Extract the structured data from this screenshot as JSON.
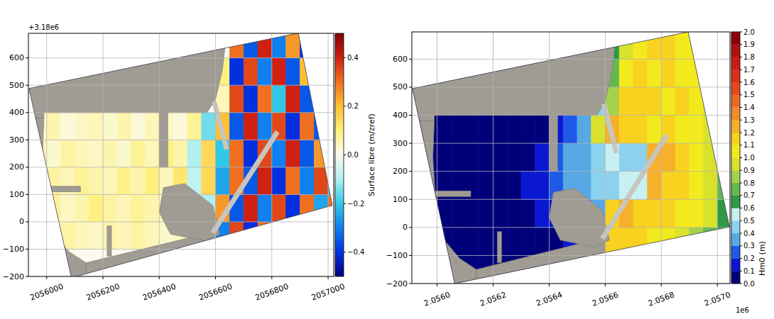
{
  "chart_data": [
    {
      "type": "heatmap",
      "xlim": [
        2055935,
        2057020
      ],
      "ylim": [
        -200,
        690
      ],
      "xticks": [
        2056000,
        2056200,
        2056400,
        2056600,
        2056800,
        2057000
      ],
      "yticks": [
        {
          "value": -200,
          "label": "−200"
        },
        {
          "value": -100,
          "label": "−100"
        },
        0,
        100,
        200,
        300,
        400,
        500,
        600
      ],
      "y_offset_text": "+3.18e6",
      "grid": true,
      "domain": {
        "x": [
          2055937,
          2056894,
          2057015,
          2056088
        ],
        "y": [
          488,
          691,
          60,
          -205
        ]
      },
      "cells": {
        "x_edges": [
          2055900,
          2055950,
          2056000,
          2056050,
          2056100,
          2056150,
          2056200,
          2056250,
          2056300,
          2056350,
          2056400,
          2056450,
          2056500,
          2056550,
          2056600,
          2056650,
          2056700,
          2056750,
          2056800,
          2056850,
          2056900,
          2056950,
          2057000,
          2057050
        ],
        "y_edges": [
          -200,
          -100,
          0,
          100,
          200,
          300,
          400,
          500,
          600,
          700
        ],
        "values": [
          [
            0,
            0,
            0,
            0,
            0,
            0,
            0,
            0,
            0,
            0,
            0,
            0,
            0,
            0,
            0.3,
            -0.35,
            0.35,
            -0.4,
            0.3,
            -0.3,
            0.4,
            -0.35,
            0.2
          ],
          [
            0.04,
            0.06,
            0.05,
            0.07,
            0.05,
            0.04,
            0.06,
            0.05,
            0.07,
            0.05,
            0.03,
            0.04,
            0.02,
            0,
            -0.3,
            0.35,
            -0.4,
            0.3,
            -0.35,
            0.4,
            -0.2,
            0.3,
            -0.3
          ],
          [
            0.06,
            0.05,
            0.08,
            0.04,
            0.06,
            0.1,
            0.07,
            0.05,
            0.08,
            0.06,
            0.04,
            0.05,
            0.03,
            -0.1,
            0.25,
            -0.35,
            0.4,
            -0.3,
            0.35,
            -0.4,
            0.3,
            -0.25,
            0.3
          ],
          [
            0.05,
            0.04,
            0.07,
            0.05,
            0.08,
            0.06,
            0.05,
            0.09,
            0.06,
            0.1,
            0.05,
            0.12,
            -0.08,
            0.15,
            -0.25,
            0.3,
            -0.35,
            0.4,
            -0.4,
            0.3,
            -0.3,
            0.35,
            -0.2
          ],
          [
            0.04,
            0.06,
            0.03,
            0.07,
            0.05,
            0.04,
            0.06,
            0.03,
            0.08,
            0.05,
            0.1,
            0.06,
            -0.1,
            0.15,
            -0.2,
            0.3,
            -0.4,
            0.35,
            -0.3,
            0.4,
            -0.35,
            0.25,
            -0.3
          ],
          [
            0.05,
            0.03,
            0.06,
            0.02,
            0.04,
            0.05,
            0.03,
            0.06,
            0.02,
            0.05,
            0.04,
            0.02,
            0.08,
            -0.15,
            0.2,
            -0.35,
            0.4,
            -0.3,
            0.35,
            -0.4,
            0.3,
            -0.35,
            0.2
          ],
          [
            0,
            0,
            0,
            0,
            0,
            0,
            0,
            0,
            0,
            0,
            0,
            0,
            0,
            0,
            0.05,
            0.35,
            -0.4,
            0.3,
            -0.2,
            0.4,
            -0.35,
            0.3,
            -0.25
          ],
          [
            0,
            0,
            0,
            0,
            0,
            0,
            0,
            0,
            0,
            0,
            0,
            0,
            0,
            0,
            0.1,
            -0.4,
            0.35,
            -0.3,
            0.4,
            -0.35,
            0.2,
            -0.3,
            0.4
          ],
          [
            0,
            0,
            0,
            0,
            0,
            0,
            0,
            0,
            0,
            0,
            0,
            0,
            0,
            0,
            0,
            0.3,
            -0.35,
            0.4,
            -0.3,
            0.25,
            -0.4,
            0.35,
            -0.2
          ]
        ]
      },
      "colorbar": {
        "label": "Surface libre (m/zref)",
        "lim": [
          -0.5,
          0.5
        ],
        "ticks": [
          {
            "value": -0.4,
            "label": "−0.4"
          },
          {
            "value": -0.2,
            "label": "−0.2"
          },
          {
            "value": 0,
            "label": "0.0"
          },
          0.2,
          0.4
        ]
      },
      "land": [
        {
          "x": [
            2055850,
            2056650,
            2056625,
            2056600,
            2056570,
            2055990,
            2055990,
            2055850
          ],
          "y": [
            800,
            800,
            560,
            450,
            400,
            400,
            380,
            380
          ]
        },
        {
          "x": [
            2055850,
            2055990,
            2055985,
            2055995,
            2056030,
            2056080,
            2056140,
            2056140,
            2055850
          ],
          "y": [
            380,
            380,
            250,
            90,
            -50,
            -110,
            -150,
            -260,
            -260
          ]
        },
        {
          "x": [
            2056140,
            2056560,
            2056600,
            2056600,
            2056140
          ],
          "y": [
            -150,
            -45,
            -60,
            -260,
            -260
          ]
        },
        {
          "x": [
            2056400,
            2056415,
            2056490,
            2056590,
            2056615,
            2056565,
            2056440
          ],
          "y": [
            35,
            125,
            140,
            60,
            -45,
            -70,
            -45
          ]
        },
        {
          "x": [
            2056400,
            2056430,
            2056430,
            2056400
          ],
          "y": [
            400,
            400,
            200,
            200
          ]
        },
        {
          "x": [
            2055990,
            2056120,
            2056120,
            2055990
          ],
          "y": [
            130,
            130,
            110,
            110
          ]
        },
        {
          "x": [
            2056215,
            2056230,
            2056230,
            2056215
          ],
          "y": [
            -15,
            -15,
            -125,
            -125
          ]
        }
      ],
      "breakwaters": [
        {
          "x": [
            2056590,
            2056820
          ],
          "y": [
            -40,
            330
          ]
        },
        {
          "x": [
            2056595,
            2056640
          ],
          "y": [
            440,
            265
          ]
        }
      ]
    },
    {
      "type": "contourf",
      "xlim": [
        2055910,
        2057045
      ],
      "ylim": [
        -200,
        697
      ],
      "xticks": [
        {
          "value": 2056000,
          "label": "2.0560"
        },
        {
          "value": 2056200,
          "label": "2.0562"
        },
        {
          "value": 2056400,
          "label": "2.0564"
        },
        {
          "value": 2056600,
          "label": "2.0566"
        },
        {
          "value": 2056800,
          "label": "2.0568"
        },
        {
          "value": 2057000,
          "label": "2.0570"
        }
      ],
      "yticks": [
        {
          "value": -200,
          "label": "−200"
        },
        {
          "value": -100,
          "label": "−100"
        },
        0,
        100,
        200,
        300,
        400,
        500,
        600
      ],
      "x_offset_text": "1e6",
      "grid": true,
      "domain": {
        "x": [
          2055912,
          2056896,
          2057043,
          2056063
        ],
        "y": [
          495,
          697,
          2,
          -200
        ]
      },
      "cells": {
        "x_edges": [
          2055900,
          2055950,
          2056000,
          2056050,
          2056100,
          2056150,
          2056200,
          2056250,
          2056300,
          2056350,
          2056400,
          2056450,
          2056500,
          2056550,
          2056600,
          2056650,
          2056700,
          2056750,
          2056800,
          2056850,
          2056900,
          2056950,
          2057000,
          2057050
        ],
        "y_edges": [
          -200,
          -100,
          0,
          100,
          200,
          300,
          400,
          500,
          600,
          700
        ],
        "values": [
          [
            0.05,
            0.05,
            0.05,
            0.05,
            0.05,
            0.05,
            0.05,
            0.05,
            0.05,
            0.05,
            0.05,
            0.05,
            0.05,
            0.7,
            0.9,
            1.0,
            1.0,
            0.95,
            0.9,
            0.85,
            0.8,
            0.7,
            0.6
          ],
          [
            0.05,
            0.05,
            0.05,
            0.05,
            0.05,
            0.05,
            0.05,
            0.05,
            0.05,
            0.05,
            0.08,
            0.1,
            0.15,
            0.9,
            1.1,
            1.15,
            1.1,
            1.05,
            1.0,
            0.95,
            0.85,
            0.7,
            0.6
          ],
          [
            0.05,
            0.05,
            0.05,
            0.05,
            0.05,
            0.05,
            0.05,
            0.05,
            0.08,
            0.1,
            0.12,
            0.15,
            0.2,
            0.3,
            1.15,
            1.2,
            1.15,
            1.1,
            1.1,
            1.05,
            1.0,
            0.9,
            0.65
          ],
          [
            0.05,
            0.05,
            0.05,
            0.05,
            0.05,
            0.05,
            0.05,
            0.08,
            0.1,
            0.15,
            0.2,
            0.3,
            0.35,
            0.4,
            0.45,
            0.5,
            0.55,
            1.2,
            1.15,
            1.1,
            1.05,
            0.95,
            0.7
          ],
          [
            0.05,
            0.05,
            0.05,
            0.05,
            0.05,
            0.05,
            0.05,
            0.05,
            0.08,
            0.15,
            0.25,
            0.3,
            0.35,
            0.45,
            0.5,
            0.45,
            0.4,
            1.25,
            1.2,
            1.1,
            1.05,
            0.95,
            0.75
          ],
          [
            0.05,
            0.05,
            0.05,
            0.05,
            0.05,
            0.05,
            0.05,
            0.05,
            0.05,
            0.08,
            0.15,
            0.2,
            0.3,
            0.9,
            1.2,
            1.15,
            1.1,
            1.05,
            1.1,
            1.05,
            1.05,
            0.95,
            0.75
          ],
          [
            0.05,
            0.05,
            0.05,
            0.05,
            0.05,
            0.05,
            0.05,
            0.05,
            0.05,
            0.05,
            0.05,
            0.05,
            0.05,
            0.4,
            0.8,
            1.1,
            1.15,
            1.1,
            1.05,
            1.1,
            1.05,
            0.95,
            0.75
          ],
          [
            0.05,
            0.05,
            0.05,
            0.05,
            0.05,
            0.05,
            0.05,
            0.05,
            0.05,
            0.05,
            0.05,
            0.05,
            0.05,
            0.3,
            0.7,
            1.0,
            1.1,
            1.05,
            1.1,
            1.05,
            1.05,
            0.95,
            0.75
          ],
          [
            0.05,
            0.05,
            0.05,
            0.05,
            0.05,
            0.05,
            0.05,
            0.05,
            0.05,
            0.05,
            0.05,
            0.05,
            0.05,
            0.05,
            0.6,
            0.9,
            1.05,
            1.1,
            1.1,
            1.05,
            1.0,
            0.9,
            0.7
          ]
        ]
      },
      "colorbar": {
        "label": "Hm0 (m)",
        "lim": [
          0,
          2
        ],
        "ticks": [
          {
            "value": 0,
            "label": "0.0"
          },
          0.1,
          0.2,
          0.3,
          0.4,
          0.5,
          0.6,
          0.7,
          0.8,
          0.9,
          {
            "value": 1,
            "label": "1.0"
          },
          1.1,
          1.2,
          1.3,
          1.4,
          1.5,
          1.6,
          1.7,
          1.8,
          1.9,
          {
            "value": 2,
            "label": "2.0"
          }
        ]
      },
      "land": [
        {
          "x": [
            2055850,
            2056650,
            2056625,
            2056600,
            2056570,
            2055990,
            2055990,
            2055850
          ],
          "y": [
            800,
            800,
            560,
            450,
            400,
            400,
            380,
            380
          ]
        },
        {
          "x": [
            2055850,
            2055990,
            2055985,
            2055995,
            2056030,
            2056080,
            2056140,
            2056140,
            2055850
          ],
          "y": [
            380,
            380,
            250,
            90,
            -50,
            -110,
            -150,
            -260,
            -260
          ]
        },
        {
          "x": [
            2056140,
            2056560,
            2056600,
            2056600,
            2056140
          ],
          "y": [
            -150,
            -45,
            -60,
            -260,
            -260
          ]
        },
        {
          "x": [
            2056400,
            2056415,
            2056490,
            2056590,
            2056615,
            2056565,
            2056440
          ],
          "y": [
            35,
            125,
            140,
            60,
            -45,
            -70,
            -45
          ]
        },
        {
          "x": [
            2056400,
            2056430,
            2056430,
            2056400
          ],
          "y": [
            400,
            400,
            200,
            200
          ]
        },
        {
          "x": [
            2055990,
            2056120,
            2056120,
            2055990
          ],
          "y": [
            130,
            130,
            110,
            110
          ]
        },
        {
          "x": [
            2056215,
            2056230,
            2056230,
            2056215
          ],
          "y": [
            -15,
            -15,
            -125,
            -125
          ]
        }
      ],
      "breakwaters": [
        {
          "x": [
            2056590,
            2056820
          ],
          "y": [
            -40,
            330
          ]
        },
        {
          "x": [
            2056595,
            2056640
          ],
          "y": [
            440,
            265
          ]
        }
      ]
    }
  ]
}
